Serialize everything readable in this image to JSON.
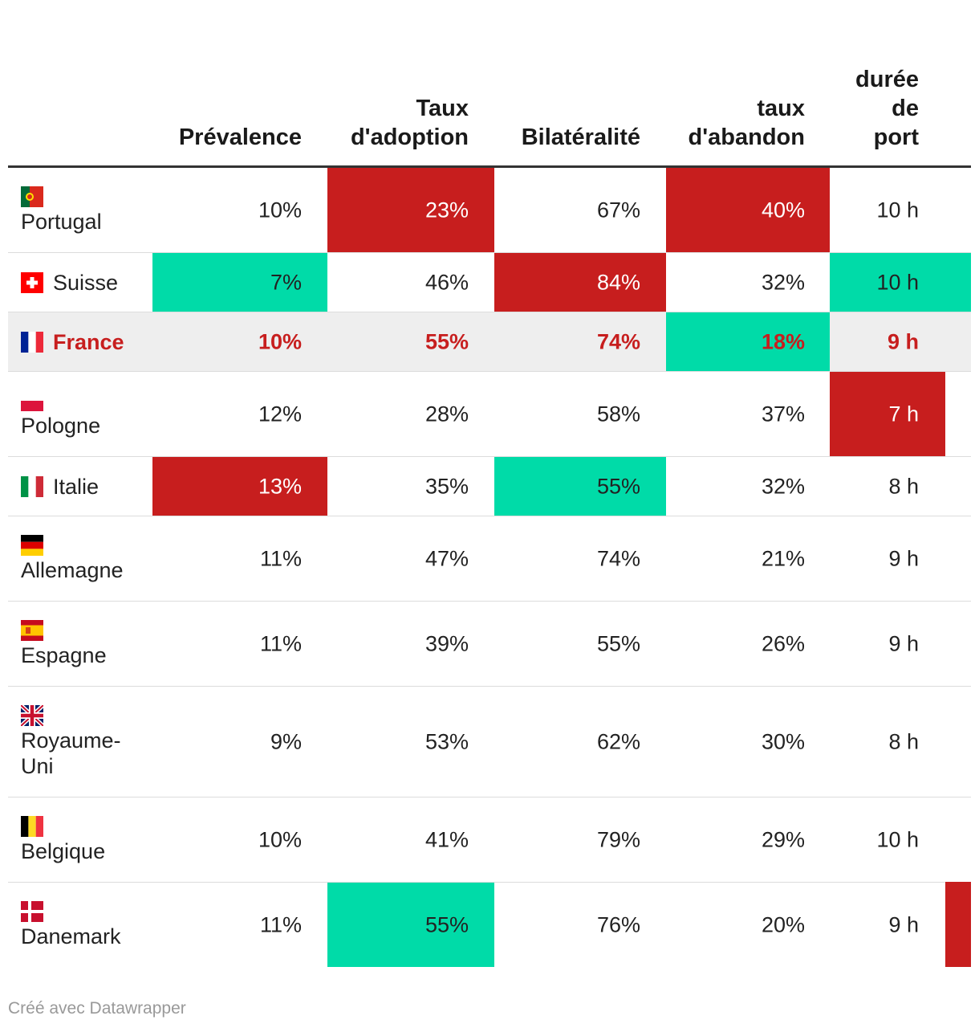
{
  "colors": {
    "red": "#c71e1e",
    "green": "#00dba8",
    "highlight": "#eeeeee"
  },
  "chart_data": {
    "type": "table",
    "columns": [
      "Prévalence",
      "Taux d'adoption",
      "Bilatéralité",
      "taux d'abandon",
      "durée de port"
    ],
    "column_header_lines": [
      [
        "Prévalence"
      ],
      [
        "Taux",
        "d'adoption"
      ],
      [
        "Bilatéralité"
      ],
      [
        "taux",
        "d'abandon"
      ],
      [
        "durée",
        "de",
        "port"
      ]
    ],
    "rows": [
      {
        "country": "Portugal",
        "flag": "portugal-flag-icon",
        "values": [
          "10%",
          "23%",
          "67%",
          "40%",
          "10 h"
        ],
        "colors": [
          null,
          "red",
          null,
          "red",
          null
        ]
      },
      {
        "country": "Suisse",
        "flag": "switzerland-flag-icon",
        "values": [
          "7%",
          "46%",
          "84%",
          "32%",
          "10 h"
        ],
        "colors": [
          "green",
          null,
          "red",
          null,
          "green"
        ]
      },
      {
        "country": "France",
        "flag": "france-flag-icon",
        "highlight": true,
        "values": [
          "10%",
          "55%",
          "74%",
          "18%",
          "9 h"
        ],
        "colors": [
          null,
          null,
          null,
          "green",
          null
        ]
      },
      {
        "country": "Pologne",
        "flag": "poland-flag-icon",
        "values": [
          "12%",
          "28%",
          "58%",
          "37%",
          "7 h"
        ],
        "colors": [
          null,
          null,
          null,
          null,
          "red"
        ]
      },
      {
        "country": "Italie",
        "flag": "italy-flag-icon",
        "values": [
          "13%",
          "35%",
          "55%",
          "32%",
          "8 h"
        ],
        "colors": [
          "red",
          null,
          "green",
          null,
          null
        ]
      },
      {
        "country": "Allemagne",
        "flag": "germany-flag-icon",
        "values": [
          "11%",
          "47%",
          "74%",
          "21%",
          "9 h"
        ],
        "colors": [
          null,
          null,
          null,
          null,
          null
        ]
      },
      {
        "country": "Espagne",
        "flag": "spain-flag-icon",
        "values": [
          "11%",
          "39%",
          "55%",
          "26%",
          "9 h"
        ],
        "colors": [
          null,
          null,
          null,
          null,
          null
        ]
      },
      {
        "country": "Royaume-Uni",
        "country_lines": [
          "Royaume-",
          "Uni"
        ],
        "flag": "uk-flag-icon",
        "values": [
          "9%",
          "53%",
          "62%",
          "30%",
          "8 h"
        ],
        "colors": [
          null,
          null,
          null,
          null,
          null
        ]
      },
      {
        "country": "Belgique",
        "flag": "belgium-flag-icon",
        "values": [
          "10%",
          "41%",
          "79%",
          "29%",
          "10 h"
        ],
        "colors": [
          null,
          null,
          null,
          null,
          null
        ]
      },
      {
        "country": "Danemark",
        "flag": "denmark-flag-icon",
        "values": [
          "11%",
          "55%",
          "76%",
          "20%",
          "9 h"
        ],
        "colors": [
          null,
          "green",
          null,
          null,
          null
        ]
      }
    ]
  },
  "footer": {
    "credit": "Créé avec Datawrapper"
  }
}
